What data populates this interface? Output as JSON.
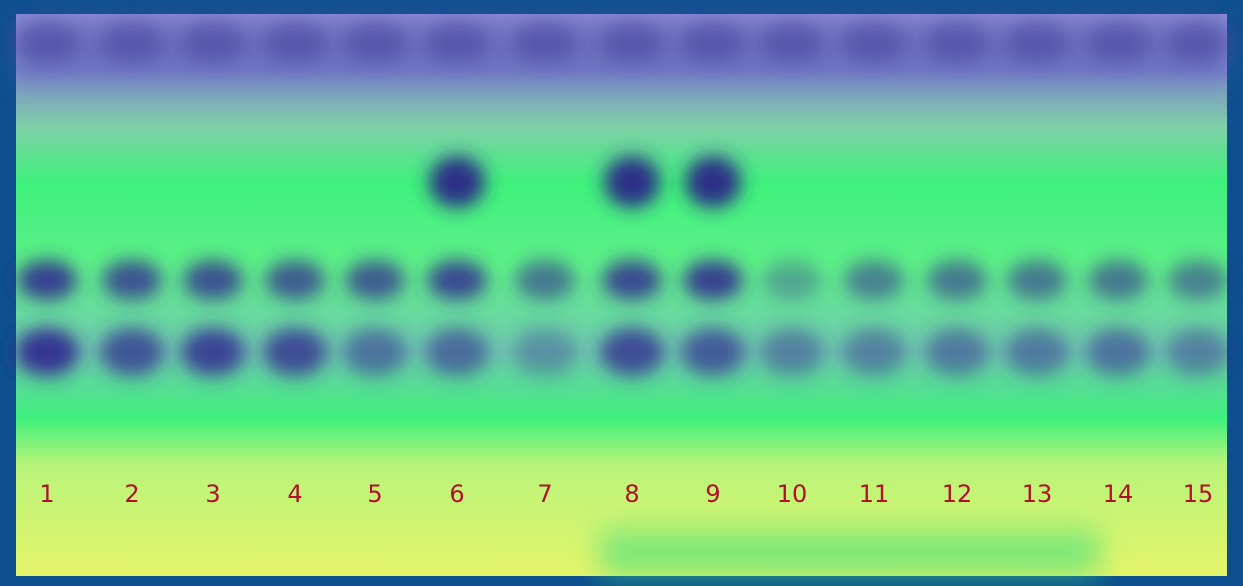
{
  "lanes": [
    "1",
    "2",
    "3",
    "4",
    "5",
    "6",
    "7",
    "8",
    "9",
    "10",
    "11",
    "12",
    "13",
    "14",
    "15"
  ]
}
